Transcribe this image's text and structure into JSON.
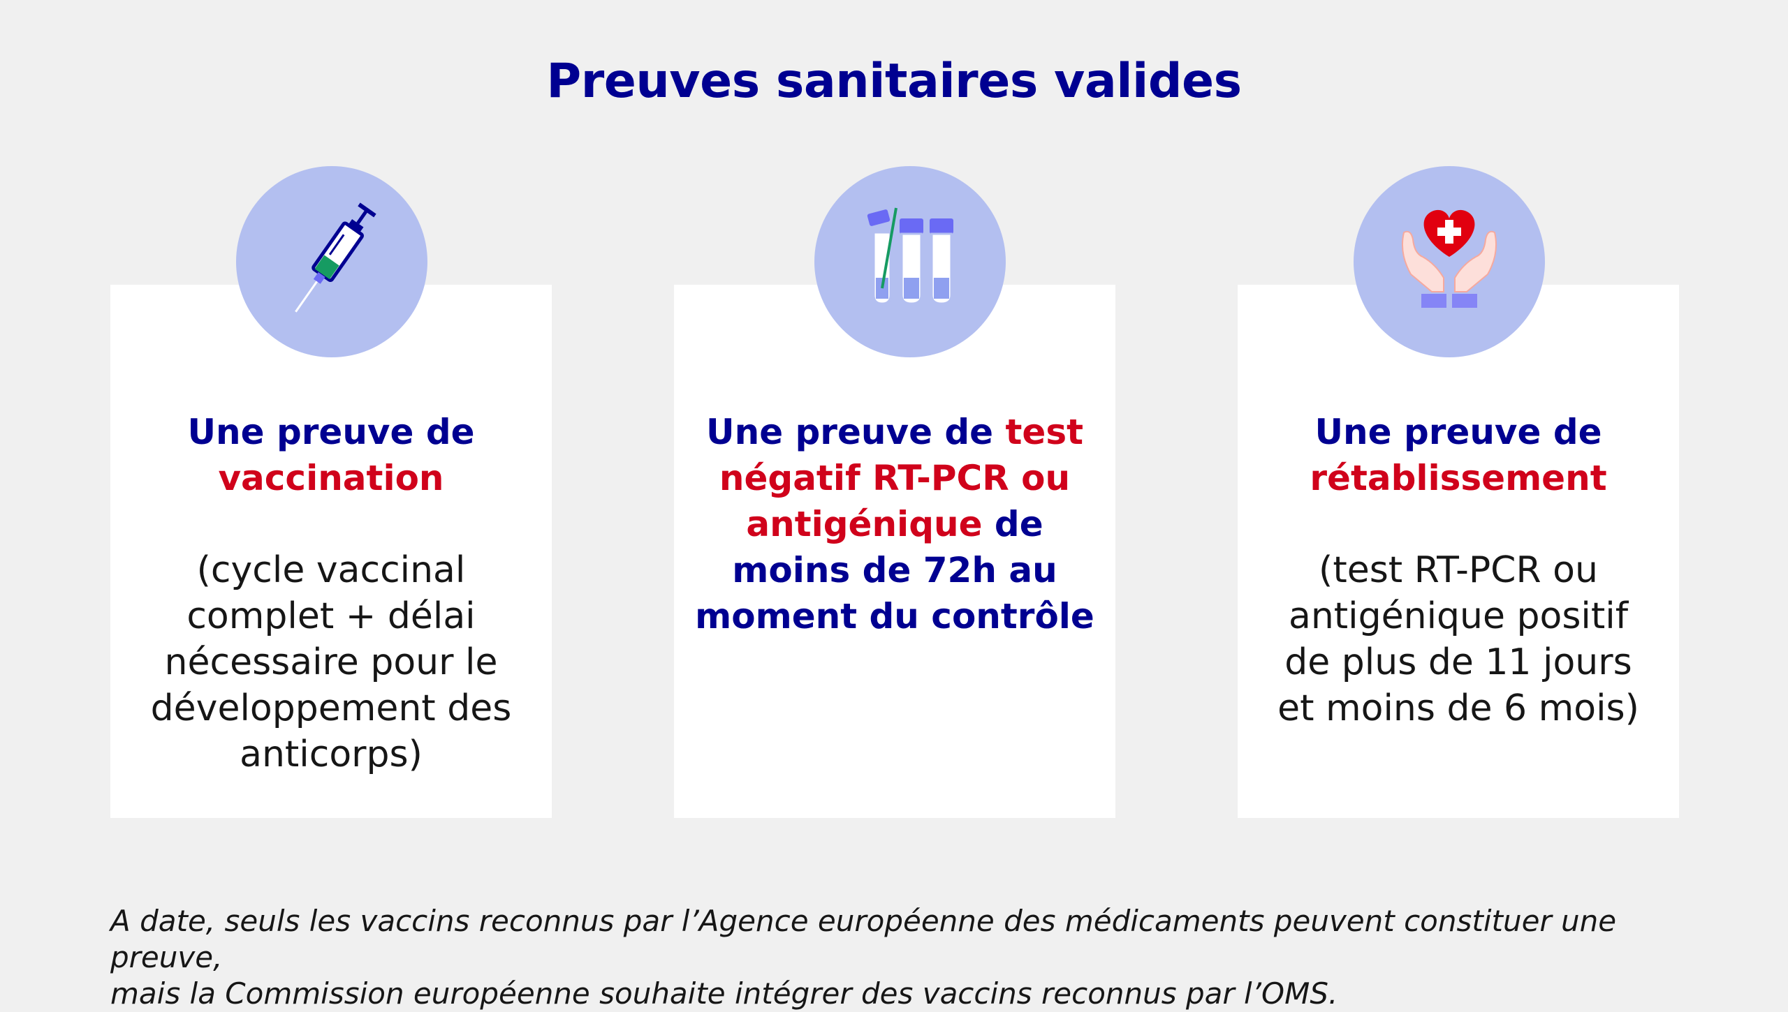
{
  "title": "Preuves sanitaires valides",
  "cards": [
    {
      "icon": "syringe-icon",
      "heading_part1": "Une preuve de",
      "heading_part2": "vaccination",
      "body_lines": [
        "(cycle vaccinal",
        "complet + délai",
        "nécessaire pour le",
        "développement des",
        "anticorps)"
      ]
    },
    {
      "icon": "test-tubes-icon",
      "heading_parts": [
        {
          "text": "Une preuve de ",
          "color": "blue"
        },
        {
          "text": "test",
          "color": "red"
        },
        {
          "text": "négatif RT-PCR ou",
          "color": "red"
        },
        {
          "text": "antigénique",
          "color": "red"
        },
        {
          "text": " de",
          "color": "blue"
        },
        {
          "text": "moins de 72h au",
          "color": "blue"
        },
        {
          "text": "moment du contrôle",
          "color": "blue"
        }
      ]
    },
    {
      "icon": "hands-heart-icon",
      "heading_part1": "Une preuve de",
      "heading_part2": "rétablissement",
      "body_lines": [
        "(test RT-PCR ou",
        "antigénique positif",
        "de plus de 11 jours",
        "et moins de 6 mois)"
      ]
    }
  ],
  "footnote_lines": [
    "A date, seuls les vaccins reconnus par l’Agence européenne des médicaments peuvent constituer une preuve,",
    "mais la Commission européenne souhaite intégrer des vaccins reconnus par l’OMS."
  ],
  "colors": {
    "background": "#f0f0f0",
    "navy": "#000091",
    "red": "#d0021b",
    "circle": "#b3bff0"
  }
}
